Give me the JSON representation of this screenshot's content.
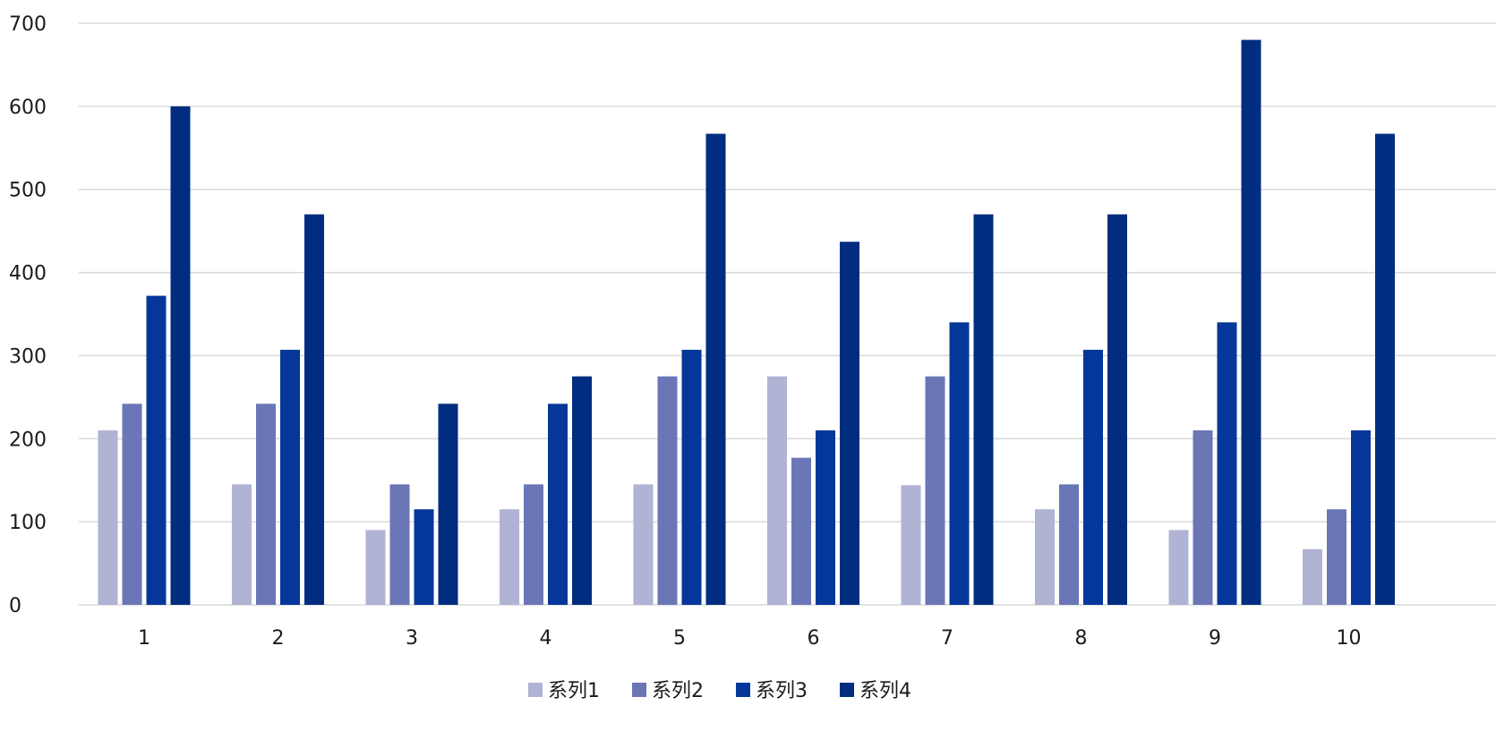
{
  "chart_data": {
    "type": "bar",
    "title": "",
    "xlabel": "",
    "ylabel": "",
    "categories": [
      "1",
      "2",
      "3",
      "4",
      "5",
      "6",
      "7",
      "8",
      "9",
      "10"
    ],
    "ylim": [
      0,
      700
    ],
    "yticks": [
      0,
      100,
      200,
      300,
      400,
      500,
      600,
      700
    ],
    "grid": true,
    "legend_position": "bottom-center",
    "series": [
      {
        "name": "系列1",
        "color": "#b0b3d4",
        "values": [
          210,
          145,
          90,
          115,
          145,
          275,
          144,
          115,
          90,
          67
        ]
      },
      {
        "name": "系列2",
        "color": "#6b76b6",
        "values": [
          242,
          242,
          145,
          145,
          275,
          177,
          275,
          145,
          210,
          115
        ]
      },
      {
        "name": "系列3",
        "color": "#05379a",
        "values": [
          372,
          307,
          115,
          242,
          307,
          210,
          340,
          307,
          340,
          210
        ]
      },
      {
        "name": "系列4",
        "color": "#002d7f",
        "values": [
          600,
          470,
          242,
          275,
          567,
          437,
          470,
          470,
          680,
          567
        ]
      }
    ]
  }
}
